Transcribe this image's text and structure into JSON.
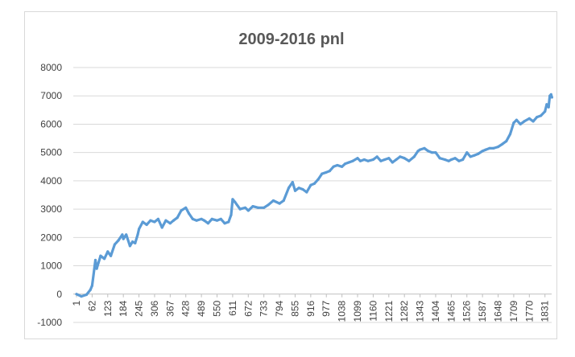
{
  "chart_data": {
    "type": "line",
    "title": "2009-2016 pnl",
    "xlabel": "",
    "ylabel": "",
    "ylim": [
      -1000,
      8000
    ],
    "grid": true,
    "legend": "none",
    "color": "#5b9bd5",
    "y_ticks": [
      "8000",
      "7000",
      "6000",
      "5000",
      "4000",
      "3000",
      "2000",
      "1000",
      "0",
      "-1000"
    ],
    "x_tick_labels": [
      "1",
      "62",
      "123",
      "184",
      "245",
      "306",
      "367",
      "428",
      "489",
      "550",
      "611",
      "672",
      "733",
      "794",
      "855",
      "916",
      "977",
      "1038",
      "1099",
      "1160",
      "1221",
      "1282",
      "1343",
      "1404",
      "1465",
      "1526",
      "1587",
      "1648",
      "1709",
      "1770",
      "1831"
    ],
    "series": [
      {
        "x": [
          1,
          20,
          40,
          55,
          62,
          75,
          80,
          95,
          110,
          123,
          135,
          150,
          165,
          180,
          184,
          195,
          210,
          220,
          230,
          240,
          245,
          260,
          275,
          290,
          306,
          320,
          335,
          350,
          367,
          380,
          395,
          410,
          428,
          440,
          455,
          470,
          489,
          500,
          515,
          530,
          550,
          565,
          580,
          595,
          605,
          611,
          620,
          640,
          660,
          672,
          690,
          710,
          733,
          750,
          770,
          794,
          810,
          830,
          845,
          855,
          870,
          885,
          900,
          916,
          930,
          945,
          960,
          977,
          990,
          1005,
          1020,
          1038,
          1050,
          1065,
          1080,
          1099,
          1110,
          1125,
          1140,
          1160,
          1175,
          1190,
          1205,
          1221,
          1235,
          1250,
          1265,
          1282,
          1300,
          1320,
          1335,
          1343,
          1360,
          1375,
          1390,
          1404,
          1420,
          1440,
          1455,
          1465,
          1480,
          1495,
          1510,
          1526,
          1540,
          1555,
          1570,
          1587,
          1600,
          1615,
          1630,
          1648,
          1665,
          1680,
          1695,
          1709,
          1720,
          1735,
          1750,
          1770,
          1785,
          1800,
          1815,
          1831,
          1838,
          1845,
          1850,
          1855,
          1858
        ],
        "values": [
          0,
          -80,
          -20,
          150,
          300,
          1200,
          900,
          1350,
          1250,
          1500,
          1350,
          1750,
          1900,
          2100,
          1950,
          2100,
          1700,
          1850,
          1800,
          2100,
          2300,
          2550,
          2450,
          2600,
          2550,
          2650,
          2350,
          2600,
          2500,
          2600,
          2700,
          2950,
          3050,
          2850,
          2650,
          2600,
          2650,
          2600,
          2500,
          2650,
          2600,
          2650,
          2500,
          2550,
          2800,
          3350,
          3250,
          3000,
          3050,
          2950,
          3100,
          3050,
          3050,
          3150,
          3300,
          3200,
          3300,
          3750,
          3950,
          3650,
          3750,
          3700,
          3600,
          3850,
          3900,
          4050,
          4250,
          4300,
          4350,
          4500,
          4550,
          4500,
          4600,
          4650,
          4700,
          4800,
          4700,
          4750,
          4700,
          4750,
          4850,
          4700,
          4750,
          4800,
          4650,
          4750,
          4850,
          4800,
          4700,
          4850,
          5050,
          5100,
          5150,
          5050,
          5000,
          5000,
          4800,
          4750,
          4700,
          4750,
          4800,
          4700,
          4750,
          5000,
          4850,
          4900,
          4950,
          5050,
          5100,
          5150,
          5150,
          5200,
          5300,
          5400,
          5650,
          6050,
          6150,
          6000,
          6100,
          6200,
          6100,
          6250,
          6300,
          6450,
          6700,
          6600,
          7000,
          7050,
          6950
        ]
      }
    ]
  }
}
